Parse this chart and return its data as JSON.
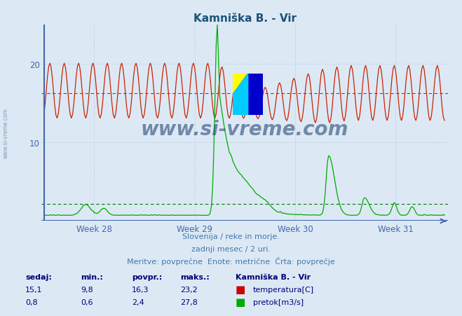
{
  "title": "Kamniška B. - Vir",
  "title_color": "#1a5276",
  "bg_color": "#dce9f5",
  "plot_bg_color": "#dce9f5",
  "grid_color": "#b0c4de",
  "axis_color": "#4466aa",
  "tick_color": "#4466aa",
  "temp_color": "#cc2200",
  "flow_color": "#00aa00",
  "avg_temp_color": "#cc2200",
  "avg_flow_color": "#007700",
  "temp_avg": 16.3,
  "flow_avg": 2.4,
  "temp_min": 9.8,
  "temp_max": 23.2,
  "flow_min": 0.6,
  "flow_max": 27.8,
  "temp_current": 15.1,
  "flow_current": 0.8,
  "y_min": 0,
  "y_max": 25,
  "subtitle1": "Slovenija / reke in morje.",
  "subtitle2": "zadnji mesec / 2 uri.",
  "subtitle3": "Meritve: povprečne  Enote: metrične  Črta: povprečje",
  "footer_color": "#4477aa",
  "week_labels": [
    "Week 28",
    "Week 29",
    "Week 30",
    "Week 31"
  ],
  "watermark": "www.si-vreme.com",
  "watermark_color": "#1a3a6a",
  "n_points": 336
}
